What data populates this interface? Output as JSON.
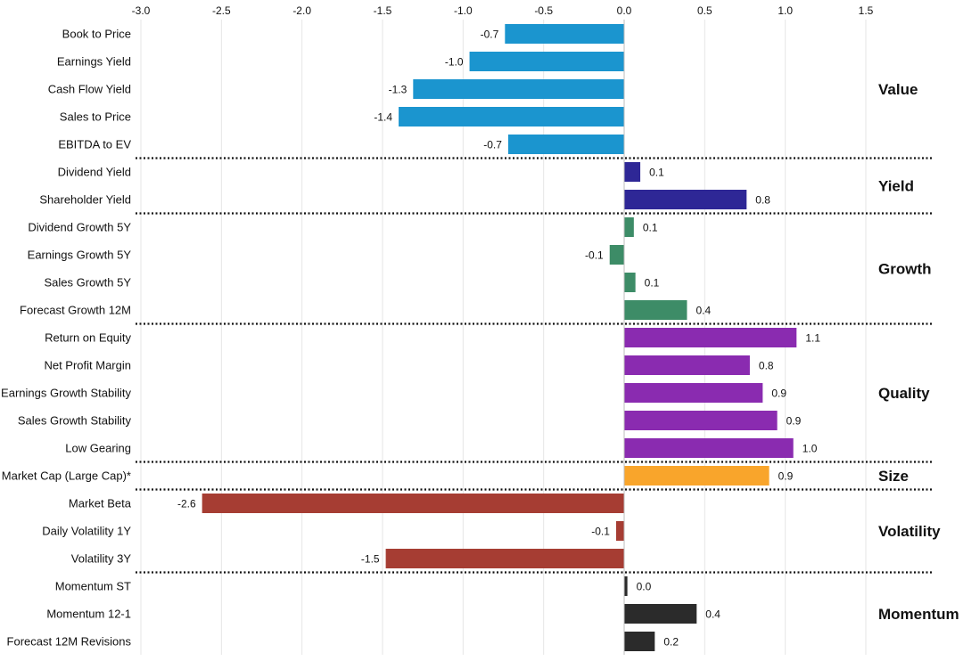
{
  "chart_data": {
    "type": "bar",
    "orientation": "horizontal",
    "title": "",
    "xlabel": "",
    "ylabel": "",
    "xlim": [
      -3.0,
      1.5
    ],
    "x_ticks": [
      -3.0,
      -2.5,
      -2.0,
      -1.5,
      -1.0,
      -0.5,
      0.0,
      0.5,
      1.0,
      1.5
    ],
    "x_tick_labels": [
      "-3.0",
      "-2.5",
      "-2.0",
      "-1.5",
      "-1.0",
      "-0.5",
      "0.0",
      "0.5",
      "1.0",
      "1.5"
    ],
    "grid": "vertical",
    "groups": [
      {
        "name": "Value",
        "color": "#1b95cf",
        "items": [
          {
            "label": "Book to Price",
            "value": -0.74,
            "value_label": "-0.7"
          },
          {
            "label": "Earnings Yield",
            "value": -0.96,
            "value_label": "-1.0"
          },
          {
            "label": "Cash Flow Yield",
            "value": -1.31,
            "value_label": "-1.3"
          },
          {
            "label": "Sales to Price",
            "value": -1.4,
            "value_label": "-1.4"
          },
          {
            "label": "EBITDA to EV",
            "value": -0.72,
            "value_label": "-0.7"
          }
        ]
      },
      {
        "name": "Yield",
        "color": "#2e2796",
        "items": [
          {
            "label": "Dividend Yield",
            "value": 0.1,
            "value_label": "0.1"
          },
          {
            "label": "Shareholder Yield",
            "value": 0.76,
            "value_label": "0.8"
          }
        ]
      },
      {
        "name": "Growth",
        "color": "#3d8c67",
        "items": [
          {
            "label": "Dividend Growth 5Y",
            "value": 0.06,
            "value_label": "0.1"
          },
          {
            "label": "Earnings Growth 5Y",
            "value": -0.09,
            "value_label": "-0.1"
          },
          {
            "label": "Sales Growth 5Y",
            "value": 0.07,
            "value_label": "0.1"
          },
          {
            "label": "Forecast Growth 12M",
            "value": 0.39,
            "value_label": "0.4"
          }
        ]
      },
      {
        "name": "Quality",
        "color": "#8a2bb0",
        "items": [
          {
            "label": "Return on Equity",
            "value": 1.07,
            "value_label": "1.1"
          },
          {
            "label": "Net Profit Margin",
            "value": 0.78,
            "value_label": "0.8"
          },
          {
            "label": "Earnings Growth Stability",
            "value": 0.86,
            "value_label": "0.9"
          },
          {
            "label": "Sales Growth Stability",
            "value": 0.95,
            "value_label": "0.9"
          },
          {
            "label": "Low Gearing",
            "value": 1.05,
            "value_label": "1.0"
          }
        ]
      },
      {
        "name": "Size",
        "color": "#f9a52b",
        "items": [
          {
            "label": "Market Cap (Large Cap)*",
            "value": 0.9,
            "value_label": "0.9"
          }
        ]
      },
      {
        "name": "Volatility",
        "color": "#a63d33",
        "items": [
          {
            "label": "Market Beta",
            "value": -2.62,
            "value_label": "-2.6"
          },
          {
            "label": "Daily Volatility 1Y",
            "value": -0.05,
            "value_label": "-0.1"
          },
          {
            "label": "Volatility 3Y",
            "value": -1.48,
            "value_label": "-1.5"
          }
        ]
      },
      {
        "name": "Momentum",
        "color": "#2b2b2b",
        "items": [
          {
            "label": "Momentum ST",
            "value": 0.02,
            "value_label": "0.0"
          },
          {
            "label": "Momentum 12-1",
            "value": 0.45,
            "value_label": "0.4"
          },
          {
            "label": "Forecast 12M Revisions",
            "value": 0.19,
            "value_label": "0.2"
          }
        ]
      }
    ]
  }
}
